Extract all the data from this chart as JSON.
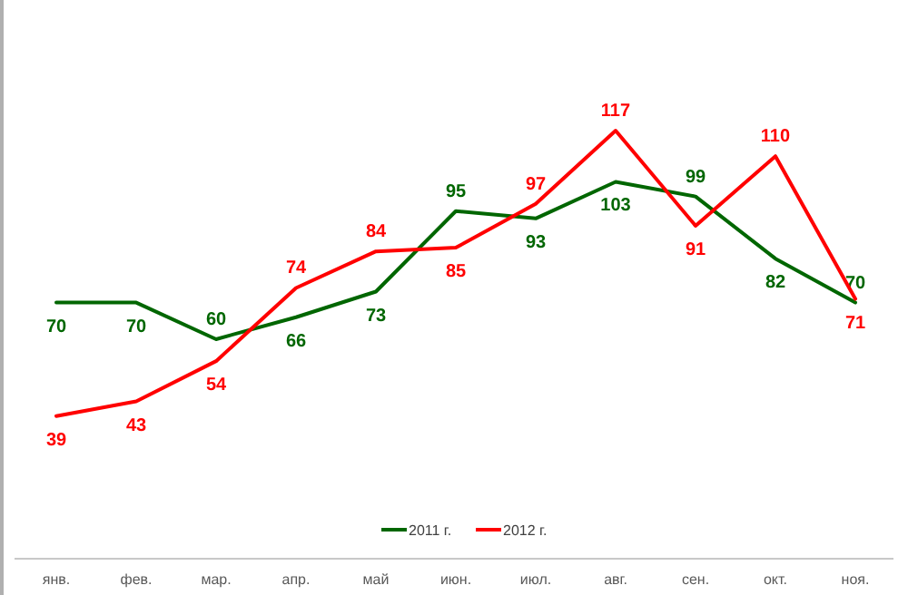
{
  "chart_data": {
    "type": "line",
    "categories": [
      "янв.",
      "фев.",
      "мар.",
      "апр.",
      "май",
      "июн.",
      "июл.",
      "авг.",
      "сен.",
      "окт.",
      "ноя."
    ],
    "series": [
      {
        "name": "2011 г.",
        "color": "#006600",
        "values": [
          70,
          70,
          60,
          66,
          73,
          95,
          93,
          103,
          99,
          82,
          70
        ]
      },
      {
        "name": "2012 г.",
        "color": "#ff0000",
        "values": [
          39,
          43,
          54,
          74,
          84,
          85,
          97,
          117,
          91,
          110,
          71
        ]
      }
    ],
    "data_labels": true,
    "legend": "bottom",
    "grid": false,
    "marker": "none",
    "line_style": "solid"
  }
}
